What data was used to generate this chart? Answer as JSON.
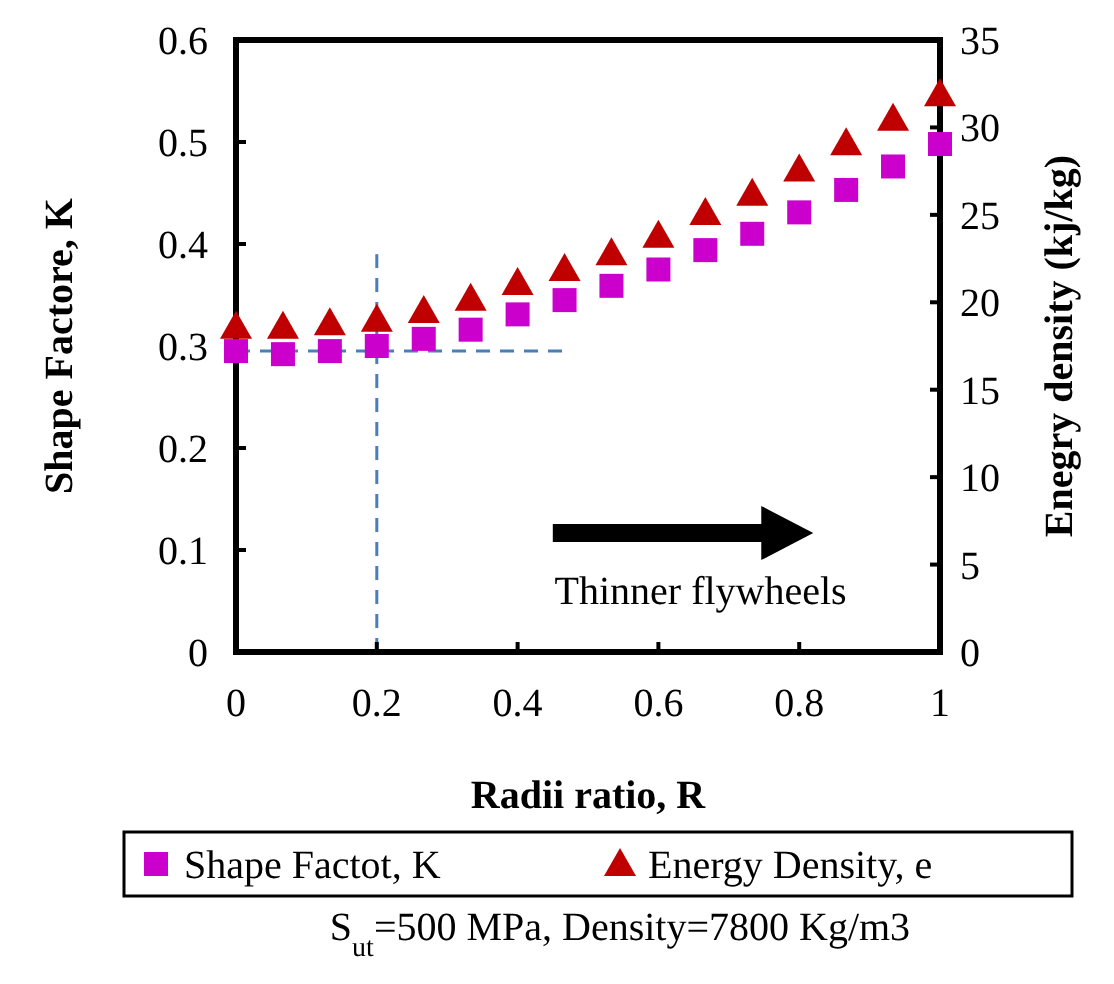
{
  "chart_data": {
    "type": "scatter",
    "xlabel": "Radii ratio, R",
    "ylabel": "Shape Factore, K",
    "y2label": "Enegry density (kj/kg)",
    "x": [
      0,
      0.0667,
      0.1333,
      0.2,
      0.2667,
      0.3333,
      0.4,
      0.4667,
      0.5333,
      0.6,
      0.6667,
      0.7333,
      0.8,
      0.8667,
      0.9333,
      1
    ],
    "xlim": [
      0,
      1
    ],
    "xticks": [
      0,
      0.2,
      0.4,
      0.6,
      0.8,
      1
    ],
    "ylim": [
      0,
      0.6
    ],
    "yticks": [
      0,
      0.1,
      0.2,
      0.3,
      0.4,
      0.5,
      0.6
    ],
    "y2lim": [
      0,
      35
    ],
    "y2ticks": [
      0,
      5,
      10,
      15,
      20,
      25,
      30,
      35
    ],
    "series": [
      {
        "name": "Shape Factot, K",
        "color": "#cc00cc",
        "marker": "square",
        "values": [
          0.295,
          0.292,
          0.295,
          0.3,
          0.307,
          0.316,
          0.331,
          0.345,
          0.359,
          0.375,
          0.394,
          0.41,
          0.431,
          0.453,
          0.476,
          0.498
        ]
      },
      {
        "name": "Energy Density, e",
        "color": "#c00000",
        "marker": "triangle",
        "axis": "y2",
        "values": [
          18.6,
          18.6,
          18.8,
          19.0,
          19.5,
          20.2,
          21.1,
          21.9,
          22.8,
          23.8,
          25.1,
          26.2,
          27.6,
          29.1,
          30.5,
          31.9
        ]
      }
    ],
    "ref_lines": [
      {
        "axis": "x",
        "value": 0.2,
        "color": "#4a7ebb",
        "line_style": "dashed"
      },
      {
        "axis": "y",
        "value": 0.295,
        "color": "#4a7ebb",
        "line_style": "dashed"
      }
    ],
    "annotations": [
      "Thinner flywheels",
      "S$_{ut}$=500 MPa, Density=7800 Kg/m3"
    ],
    "legend": "bottom",
    "grid": false
  }
}
